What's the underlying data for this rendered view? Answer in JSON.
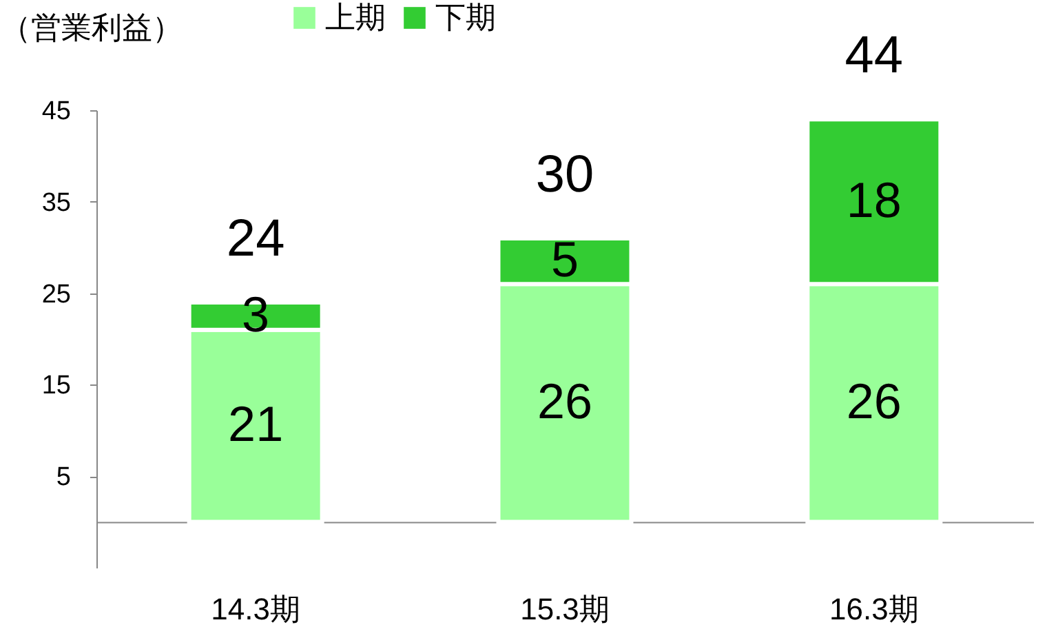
{
  "chart_data": {
    "type": "bar",
    "ylabel": "（営業利益）",
    "categories": [
      "14.3期",
      "15.3期",
      "16.3期"
    ],
    "series": [
      {
        "name": "上期",
        "color": "#99ff99",
        "values": [
          21,
          26,
          26
        ]
      },
      {
        "name": "下期",
        "color": "#33cc33",
        "values": [
          3,
          5,
          18
        ]
      }
    ],
    "stacked": true,
    "data_labels": true,
    "totals": [
      "24",
      "30",
      "44"
    ],
    "ylim": [
      -5,
      45
    ],
    "yticks": [
      5,
      15,
      25,
      35,
      45
    ],
    "grid": false,
    "legend": "top"
  }
}
